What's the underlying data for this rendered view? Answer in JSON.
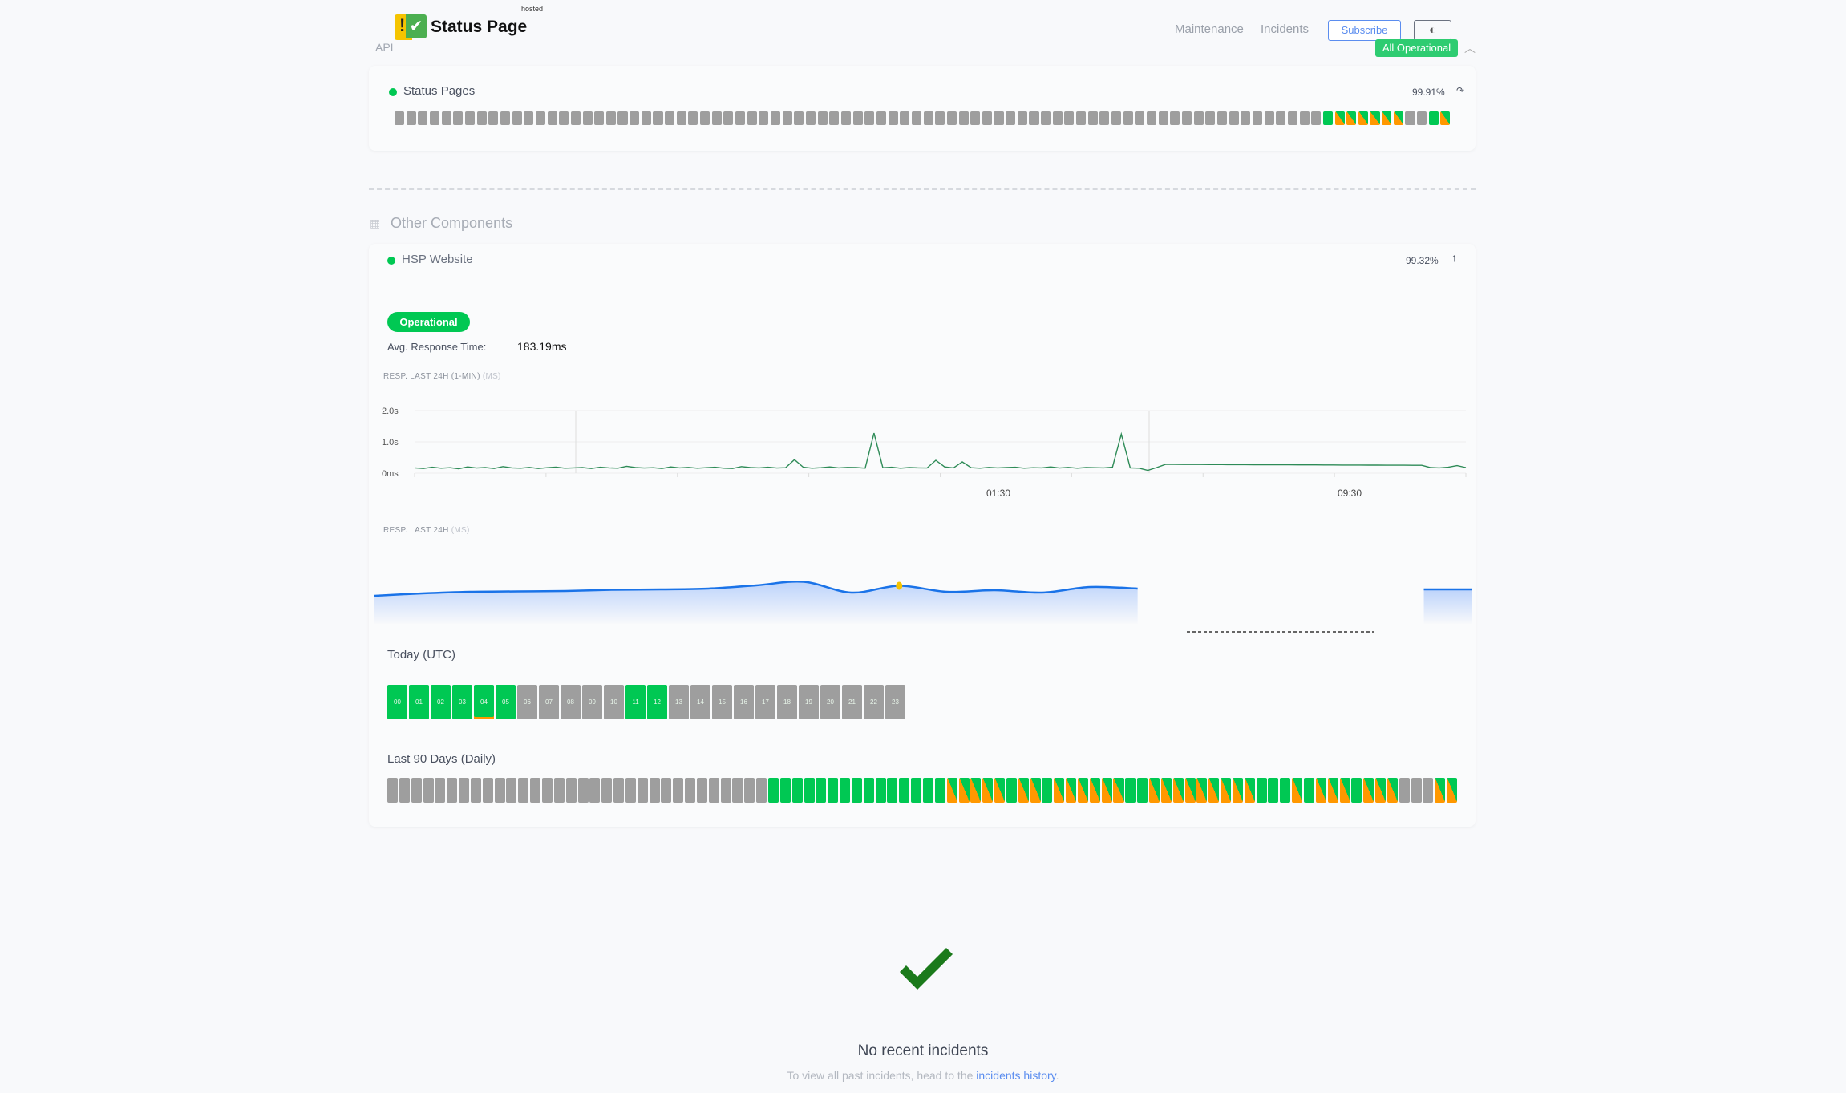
{
  "header": {
    "brand": "Status Page",
    "brand_tag": "hosted",
    "api_label": "API",
    "nav": [
      {
        "label": "Maintenance"
      },
      {
        "label": "Incidents"
      }
    ],
    "subscribe_label": "Subscribe",
    "theme_icon": "half-circle-icon",
    "overall_status": "All Operational",
    "collapse_icon": "chevron-up-icon"
  },
  "colors": {
    "operational": "#00c853",
    "partial": "#ff9800",
    "no_data": "#9e9e9e",
    "accent": "#5b8def",
    "chart_line": "#2e8b57",
    "area_line": "#1a73e8"
  },
  "api_component": {
    "name": "Status Pages",
    "uptime": "99.91%",
    "bars": "xxxxxxxxxxxxxxxxxxxxxxxxxxxxxxxxxxxxxxxxxxxxxxxxxxxxxxxxxxxxxxxxxxxxxxxxxxxxxxxgppppppxxgp"
  },
  "other": {
    "title": "Other Components",
    "component": {
      "name": "HSP Website",
      "uptime": "99.32%",
      "status": "Operational",
      "avg_label": "Avg. Response Time:",
      "avg_value": "183.19ms",
      "chart1": {
        "title": "RESP. LAST 24H (1-MIN)",
        "unit": "(MS)"
      },
      "chart2": {
        "title": "RESP. LAST 24H",
        "unit": "(MS)"
      },
      "today_label": "Today (UTC)",
      "hours": [
        {
          "h": "00",
          "s": "g"
        },
        {
          "h": "01",
          "s": "g"
        },
        {
          "h": "02",
          "s": "g"
        },
        {
          "h": "03",
          "s": "g"
        },
        {
          "h": "04",
          "s": "gw"
        },
        {
          "h": "05",
          "s": "g"
        },
        {
          "h": "06",
          "s": "x"
        },
        {
          "h": "07",
          "s": "x"
        },
        {
          "h": "08",
          "s": "x"
        },
        {
          "h": "09",
          "s": "x"
        },
        {
          "h": "10",
          "s": "x"
        },
        {
          "h": "11",
          "s": "g"
        },
        {
          "h": "12",
          "s": "g"
        },
        {
          "h": "13",
          "s": "x"
        },
        {
          "h": "14",
          "s": "x"
        },
        {
          "h": "15",
          "s": "x"
        },
        {
          "h": "16",
          "s": "x"
        },
        {
          "h": "17",
          "s": "x"
        },
        {
          "h": "18",
          "s": "x"
        },
        {
          "h": "19",
          "s": "x"
        },
        {
          "h": "20",
          "s": "x"
        },
        {
          "h": "21",
          "s": "x"
        },
        {
          "h": "22",
          "s": "x"
        },
        {
          "h": "23",
          "s": "x"
        }
      ],
      "days_label": "Last 90 Days (Daily)",
      "days": "xxxxxxxxxxxxxxxxxxxxxxxxxxxxxxxxgggggggggggggggpppppgppgppppppggpppppppppgggpgpppgpppxxxpp"
    }
  },
  "incidents": {
    "title": "No recent incidents",
    "text": "To view all past incidents, head to the",
    "link": "incidents history",
    "end": "."
  },
  "chart_data": [
    {
      "type": "line",
      "title": "RESP. LAST 24H (1-MIN)",
      "ylabel": "(MS)",
      "ylim": [
        0,
        2000
      ],
      "yticks": [
        "0ms",
        "1.0s",
        "2.0s"
      ],
      "xticks": [
        "01:30",
        "09:30"
      ],
      "grid": true,
      "values": [
        170,
        150,
        190,
        160,
        175,
        140,
        200,
        165,
        180,
        150,
        210,
        170,
        160,
        185,
        150,
        175,
        195,
        160,
        170,
        180,
        150,
        190,
        170,
        160,
        220,
        180,
        165,
        175,
        150,
        200,
        170,
        185,
        160,
        175,
        190,
        160,
        150,
        210,
        180,
        170,
        190,
        165,
        175,
        430,
        190,
        160,
        175,
        200,
        170,
        185,
        180,
        160,
        1280,
        175,
        190,
        160,
        180,
        170,
        165,
        410,
        200,
        170,
        360,
        175,
        160,
        185,
        170,
        180,
        190,
        160,
        175,
        170,
        200,
        165,
        185,
        160,
        180,
        175,
        170,
        190,
        1250,
        170,
        160,
        90,
        180,
        280,
        279,
        278,
        277,
        276,
        275,
        274,
        273,
        272,
        271,
        270,
        269,
        268,
        267,
        266,
        265,
        264,
        263,
        262,
        261,
        260,
        259,
        258,
        257,
        256,
        255,
        254,
        253,
        252,
        251,
        180,
        170,
        190,
        240,
        180
      ]
    },
    {
      "type": "area",
      "title": "RESP. LAST 24H",
      "ylabel": "(MS)",
      "highlight_index": 11,
      "values": [
        170,
        176,
        180,
        181,
        182,
        185,
        186,
        188,
        196,
        205,
        178,
        195,
        180,
        184,
        178,
        192,
        188,
        null,
        null,
        null,
        null,
        null,
        186,
        186
      ]
    }
  ]
}
